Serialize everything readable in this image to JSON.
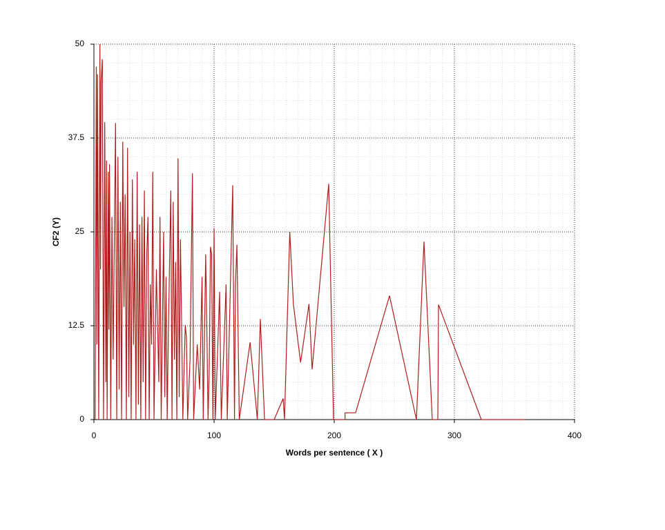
{
  "chart_data": {
    "type": "line",
    "xlabel": "Words per sentence ( X )",
    "ylabel": "CF2 (Y)",
    "x": [
      1,
      2,
      2.5,
      3,
      4,
      5,
      5.5,
      6,
      7,
      8,
      9,
      10,
      10.5,
      11,
      12,
      12.5,
      13,
      14,
      15,
      16,
      17,
      18,
      19,
      20,
      21,
      22,
      23,
      24,
      25,
      26,
      27,
      28,
      29,
      30,
      31,
      32,
      33,
      34,
      35,
      36,
      37,
      38,
      39,
      40,
      41,
      42,
      43,
      44,
      45,
      46,
      47,
      48,
      49,
      50,
      52,
      54,
      55,
      56,
      58,
      59,
      60,
      61,
      62,
      64,
      65,
      66,
      67,
      68,
      69,
      70,
      71,
      72,
      73,
      74,
      76,
      77,
      78,
      80,
      82,
      83,
      86,
      88,
      90,
      91,
      93,
      94,
      95,
      96,
      97,
      98,
      99,
      100,
      101,
      104.6,
      106,
      110,
      111,
      115.5,
      117,
      117.8,
      119,
      121,
      130,
      136,
      138.5,
      142,
      150,
      157.5,
      158.6,
      163,
      166,
      172,
      179,
      181.6,
      195.4,
      199.4,
      209,
      209,
      217.8,
      246,
      268.4,
      274.7,
      281.6,
      286.2,
      286.8,
      322.4,
      358.6
    ],
    "values": [
      0,
      47,
      10,
      46,
      0,
      50,
      20,
      45,
      48,
      0,
      39.6,
      5,
      34.5,
      0,
      33,
      12,
      34,
      0,
      27,
      8,
      24,
      39.5,
      0,
      35,
      4,
      29,
      0,
      37,
      15,
      30,
      0,
      36.2,
      3,
      25,
      0,
      32,
      10,
      24,
      0,
      33,
      2,
      26,
      0,
      27,
      5,
      30.5,
      0,
      22,
      27,
      0,
      18,
      10,
      33,
      0,
      20,
      5,
      27,
      0,
      25,
      3,
      19,
      0,
      12,
      30.5,
      0,
      29,
      8,
      21,
      0,
      34.8,
      3,
      24,
      13,
      0,
      12.6,
      11,
      0,
      8,
      32.8,
      0,
      10,
      4,
      19,
      0,
      22,
      12,
      0,
      7,
      23,
      22,
      0,
      25.5,
      0,
      17,
      0,
      18,
      0,
      31.2,
      0,
      18,
      23.3,
      0,
      10.3,
      0,
      13.4,
      0,
      0,
      2.8,
      0,
      25,
      15.4,
      7.6,
      15.4,
      6.7,
      31.4,
      0,
      0,
      0.9,
      0.9,
      16.5,
      0,
      23.7,
      0,
      0,
      15.3,
      0,
      0
    ],
    "color": "#b01c1c",
    "xlim": [
      0,
      400
    ],
    "xticks": [
      0,
      100,
      200,
      300,
      400
    ],
    "ylim": [
      0,
      50
    ],
    "yticks": [
      0,
      12.5,
      25,
      37.5,
      50
    ],
    "grid": true,
    "minor_grid": true
  }
}
